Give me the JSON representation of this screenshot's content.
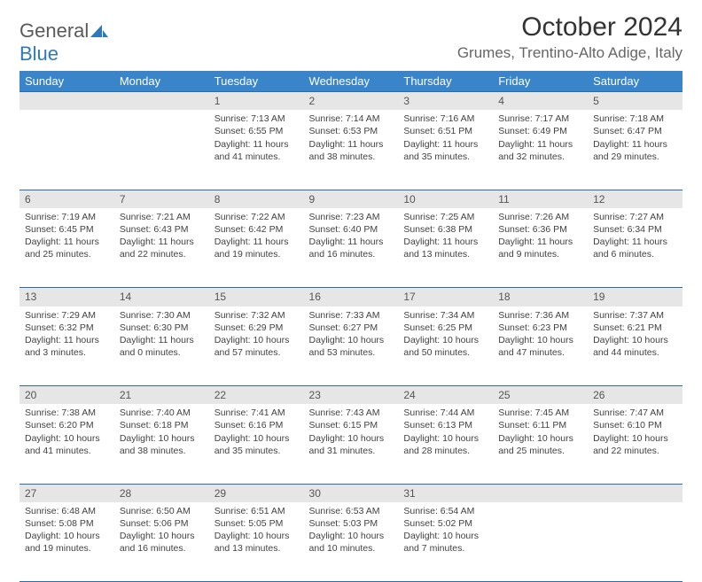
{
  "logo": {
    "word1": "General",
    "word2": "Blue"
  },
  "title": "October 2024",
  "location": "Grumes, Trentino-Alto Adige, Italy",
  "colors": {
    "header_bg": "#3a85c9",
    "header_border": "#2b6da5",
    "daynum_bg": "#e6e6e6",
    "text": "#424242",
    "logo_gray": "#5a5a5a",
    "logo_blue": "#2f78bd",
    "page_bg": "#ffffff"
  },
  "typography": {
    "month_fontsize": 30,
    "location_fontsize": 17,
    "weekday_fontsize": 13,
    "daynum_fontsize": 12,
    "body_fontsize": 10.5
  },
  "weekdays": [
    "Sunday",
    "Monday",
    "Tuesday",
    "Wednesday",
    "Thursday",
    "Friday",
    "Saturday"
  ],
  "weeks": [
    [
      null,
      null,
      {
        "n": "1",
        "sr": "Sunrise: 7:13 AM",
        "ss": "Sunset: 6:55 PM",
        "dl": "Daylight: 11 hours and 41 minutes."
      },
      {
        "n": "2",
        "sr": "Sunrise: 7:14 AM",
        "ss": "Sunset: 6:53 PM",
        "dl": "Daylight: 11 hours and 38 minutes."
      },
      {
        "n": "3",
        "sr": "Sunrise: 7:16 AM",
        "ss": "Sunset: 6:51 PM",
        "dl": "Daylight: 11 hours and 35 minutes."
      },
      {
        "n": "4",
        "sr": "Sunrise: 7:17 AM",
        "ss": "Sunset: 6:49 PM",
        "dl": "Daylight: 11 hours and 32 minutes."
      },
      {
        "n": "5",
        "sr": "Sunrise: 7:18 AM",
        "ss": "Sunset: 6:47 PM",
        "dl": "Daylight: 11 hours and 29 minutes."
      }
    ],
    [
      {
        "n": "6",
        "sr": "Sunrise: 7:19 AM",
        "ss": "Sunset: 6:45 PM",
        "dl": "Daylight: 11 hours and 25 minutes."
      },
      {
        "n": "7",
        "sr": "Sunrise: 7:21 AM",
        "ss": "Sunset: 6:43 PM",
        "dl": "Daylight: 11 hours and 22 minutes."
      },
      {
        "n": "8",
        "sr": "Sunrise: 7:22 AM",
        "ss": "Sunset: 6:42 PM",
        "dl": "Daylight: 11 hours and 19 minutes."
      },
      {
        "n": "9",
        "sr": "Sunrise: 7:23 AM",
        "ss": "Sunset: 6:40 PM",
        "dl": "Daylight: 11 hours and 16 minutes."
      },
      {
        "n": "10",
        "sr": "Sunrise: 7:25 AM",
        "ss": "Sunset: 6:38 PM",
        "dl": "Daylight: 11 hours and 13 minutes."
      },
      {
        "n": "11",
        "sr": "Sunrise: 7:26 AM",
        "ss": "Sunset: 6:36 PM",
        "dl": "Daylight: 11 hours and 9 minutes."
      },
      {
        "n": "12",
        "sr": "Sunrise: 7:27 AM",
        "ss": "Sunset: 6:34 PM",
        "dl": "Daylight: 11 hours and 6 minutes."
      }
    ],
    [
      {
        "n": "13",
        "sr": "Sunrise: 7:29 AM",
        "ss": "Sunset: 6:32 PM",
        "dl": "Daylight: 11 hours and 3 minutes."
      },
      {
        "n": "14",
        "sr": "Sunrise: 7:30 AM",
        "ss": "Sunset: 6:30 PM",
        "dl": "Daylight: 11 hours and 0 minutes."
      },
      {
        "n": "15",
        "sr": "Sunrise: 7:32 AM",
        "ss": "Sunset: 6:29 PM",
        "dl": "Daylight: 10 hours and 57 minutes."
      },
      {
        "n": "16",
        "sr": "Sunrise: 7:33 AM",
        "ss": "Sunset: 6:27 PM",
        "dl": "Daylight: 10 hours and 53 minutes."
      },
      {
        "n": "17",
        "sr": "Sunrise: 7:34 AM",
        "ss": "Sunset: 6:25 PM",
        "dl": "Daylight: 10 hours and 50 minutes."
      },
      {
        "n": "18",
        "sr": "Sunrise: 7:36 AM",
        "ss": "Sunset: 6:23 PM",
        "dl": "Daylight: 10 hours and 47 minutes."
      },
      {
        "n": "19",
        "sr": "Sunrise: 7:37 AM",
        "ss": "Sunset: 6:21 PM",
        "dl": "Daylight: 10 hours and 44 minutes."
      }
    ],
    [
      {
        "n": "20",
        "sr": "Sunrise: 7:38 AM",
        "ss": "Sunset: 6:20 PM",
        "dl": "Daylight: 10 hours and 41 minutes."
      },
      {
        "n": "21",
        "sr": "Sunrise: 7:40 AM",
        "ss": "Sunset: 6:18 PM",
        "dl": "Daylight: 10 hours and 38 minutes."
      },
      {
        "n": "22",
        "sr": "Sunrise: 7:41 AM",
        "ss": "Sunset: 6:16 PM",
        "dl": "Daylight: 10 hours and 35 minutes."
      },
      {
        "n": "23",
        "sr": "Sunrise: 7:43 AM",
        "ss": "Sunset: 6:15 PM",
        "dl": "Daylight: 10 hours and 31 minutes."
      },
      {
        "n": "24",
        "sr": "Sunrise: 7:44 AM",
        "ss": "Sunset: 6:13 PM",
        "dl": "Daylight: 10 hours and 28 minutes."
      },
      {
        "n": "25",
        "sr": "Sunrise: 7:45 AM",
        "ss": "Sunset: 6:11 PM",
        "dl": "Daylight: 10 hours and 25 minutes."
      },
      {
        "n": "26",
        "sr": "Sunrise: 7:47 AM",
        "ss": "Sunset: 6:10 PM",
        "dl": "Daylight: 10 hours and 22 minutes."
      }
    ],
    [
      {
        "n": "27",
        "sr": "Sunrise: 6:48 AM",
        "ss": "Sunset: 5:08 PM",
        "dl": "Daylight: 10 hours and 19 minutes."
      },
      {
        "n": "28",
        "sr": "Sunrise: 6:50 AM",
        "ss": "Sunset: 5:06 PM",
        "dl": "Daylight: 10 hours and 16 minutes."
      },
      {
        "n": "29",
        "sr": "Sunrise: 6:51 AM",
        "ss": "Sunset: 5:05 PM",
        "dl": "Daylight: 10 hours and 13 minutes."
      },
      {
        "n": "30",
        "sr": "Sunrise: 6:53 AM",
        "ss": "Sunset: 5:03 PM",
        "dl": "Daylight: 10 hours and 10 minutes."
      },
      {
        "n": "31",
        "sr": "Sunrise: 6:54 AM",
        "ss": "Sunset: 5:02 PM",
        "dl": "Daylight: 10 hours and 7 minutes."
      },
      null,
      null
    ]
  ]
}
